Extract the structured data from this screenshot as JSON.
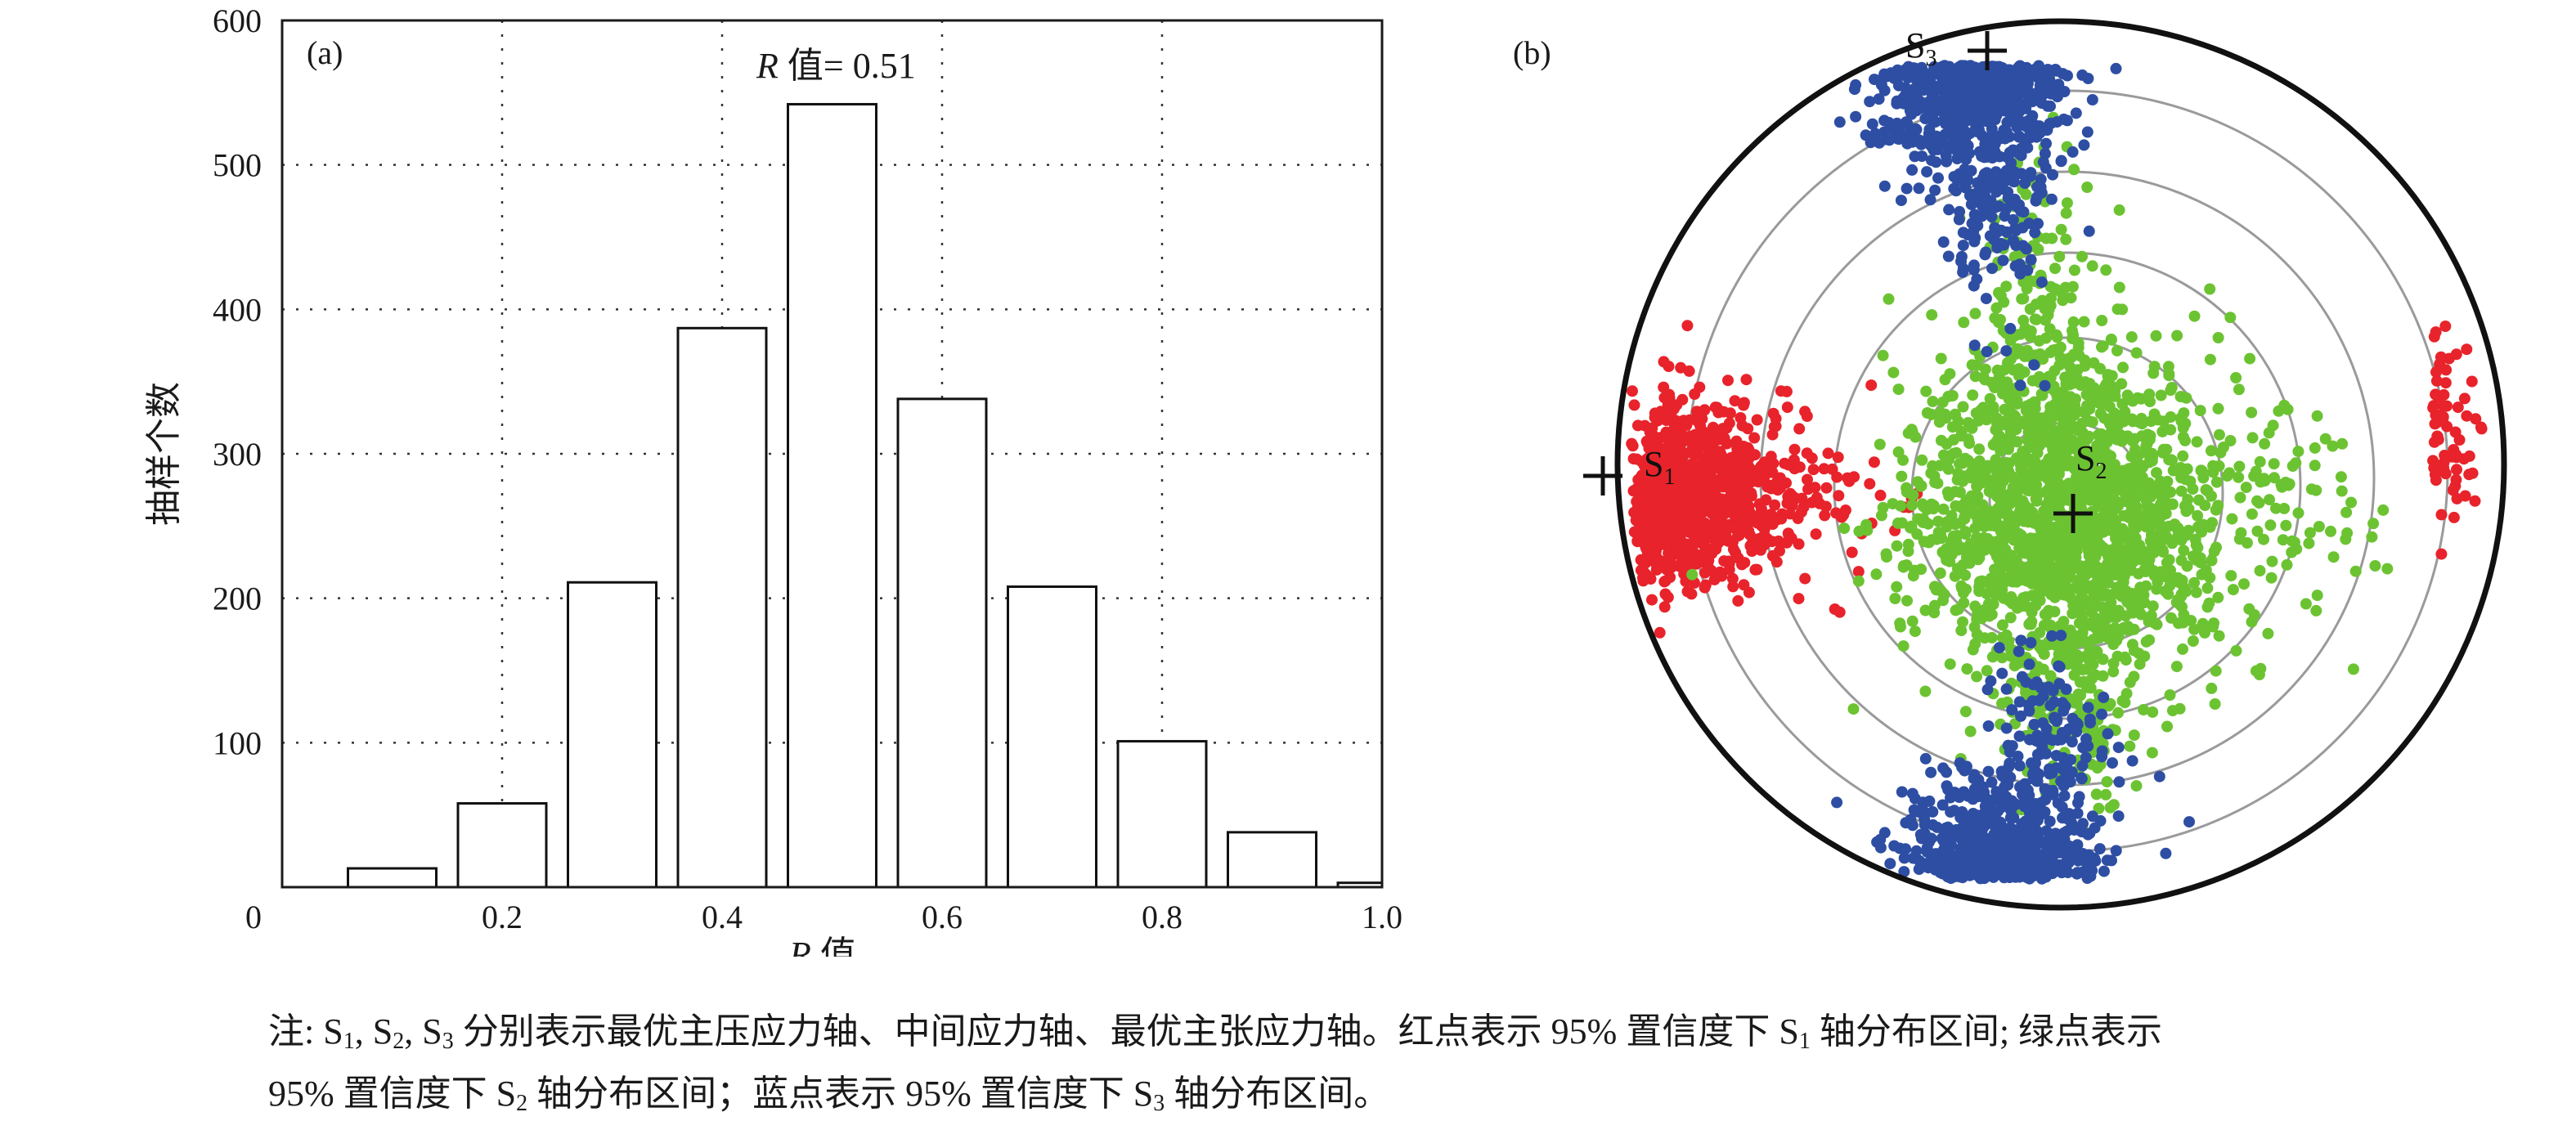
{
  "panel_a": {
    "label": "(a)",
    "annotation_italic": "R",
    "annotation_text": " 值= 0.51",
    "xlabel_italic": "R",
    "xlabel_text": " 值",
    "ylabel": "抽样个数"
  },
  "panel_b": {
    "label": "(b)",
    "axes": [
      {
        "name": "S",
        "sub": "1"
      },
      {
        "name": "S",
        "sub": "2"
      },
      {
        "name": "S",
        "sub": "3"
      }
    ],
    "colors": {
      "s1": "#e8232b",
      "s2": "#6cc332",
      "s3": "#2e4ea3"
    }
  },
  "chart_data": [
    {
      "type": "bar",
      "x": [
        0.1,
        0.2,
        0.3,
        0.4,
        0.5,
        0.6,
        0.7,
        0.8,
        0.9,
        1.0
      ],
      "values": [
        13,
        58,
        211,
        387,
        542,
        338,
        208,
        101,
        38,
        3
      ],
      "xlim": [
        0.0,
        1.0
      ],
      "ylim": [
        0,
        600
      ],
      "xticks": [
        "0.2",
        "0.4",
        "0.6",
        "0.8",
        "1.0"
      ],
      "yticks": [
        "0",
        "100",
        "200",
        "300",
        "400",
        "500",
        "600"
      ],
      "grid": true
    },
    {
      "type": "scatter",
      "projection": "stereonet",
      "concentric_rings": 5,
      "series": [
        {
          "name": "S1",
          "color": "#e8232b"
        },
        {
          "name": "S2",
          "color": "#6cc332"
        },
        {
          "name": "S3",
          "color": "#2e4ea3"
        }
      ]
    }
  ],
  "caption": {
    "lead": "注: ",
    "s_label": "S",
    "sub1": "1",
    "sub2": "2",
    "sub3": "3",
    "part1": " 分别表示最优主压应力轴、中间应力轴、最优主张应力轴。红点表示 95% 置信度下 ",
    "part2": " 轴分布区间; 绿点表示",
    "part3": "95% 置信度下 ",
    "part4": " 轴分布区间；蓝点表示 95% 置信度下 ",
    "part5": " 轴分布区间。"
  }
}
